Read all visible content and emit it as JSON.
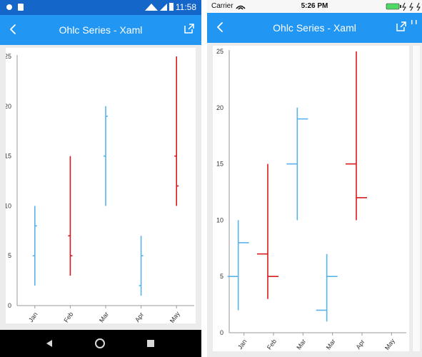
{
  "android": {
    "status_time": "11:58",
    "title": "Ohlc Series - Xaml"
  },
  "ios": {
    "carrier": "Carrier",
    "status_time": "5:26 PM",
    "title": "Ohlc Series - Xaml"
  },
  "colors": {
    "bull": "#57b3ea",
    "bear": "#d7191c",
    "nav": "#2196f3",
    "android_status": "#1467c9"
  },
  "icons": {
    "back": "chevron-left-icon",
    "share": "external-link-icon"
  },
  "chart_data": [
    {
      "type": "ohlc",
      "categories": [
        "Jan",
        "Feb",
        "Mar",
        "Apr",
        "May"
      ],
      "ylim": [
        0,
        25
      ],
      "yticks": [
        0,
        5,
        10,
        15,
        20,
        25
      ],
      "series": [
        {
          "open": 5,
          "high": 10,
          "low": 2,
          "close": 8
        },
        {
          "open": 7,
          "high": 15,
          "low": 3,
          "close": 5
        },
        {
          "open": 15,
          "high": 20,
          "low": 10,
          "close": 19
        },
        {
          "open": 2,
          "high": 7,
          "low": 1,
          "close": 5
        },
        {
          "open": 15,
          "high": 25,
          "low": 10,
          "close": 12
        }
      ]
    },
    {
      "type": "ohlc",
      "categories": [
        "Jan",
        "Feb",
        "Mar",
        "Mar",
        "Apr",
        "May"
      ],
      "ylim": [
        0,
        25
      ],
      "yticks": [
        0,
        5,
        10,
        15,
        20,
        25
      ],
      "series": [
        {
          "open": 5,
          "high": 10,
          "low": 2,
          "close": 8
        },
        {
          "open": 7,
          "high": 15,
          "low": 3,
          "close": 5
        },
        {
          "open": 15,
          "high": 20,
          "low": 10,
          "close": 19
        },
        {
          "open": 2,
          "high": 7,
          "low": 1,
          "close": 5
        },
        {
          "open": 15,
          "high": 25,
          "low": 10,
          "close": 12
        }
      ]
    }
  ]
}
